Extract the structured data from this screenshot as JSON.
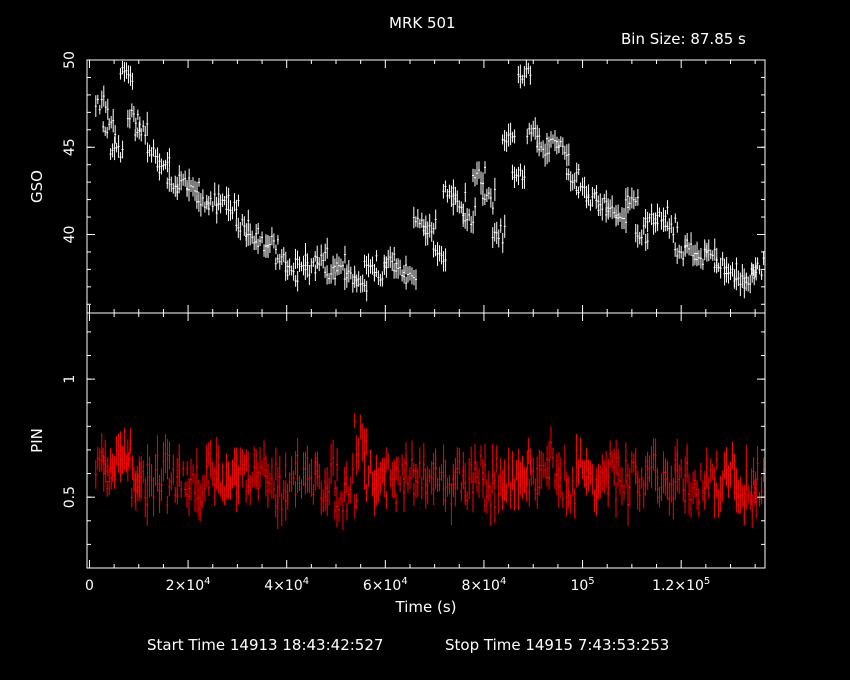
{
  "title": "MRK 501",
  "bin_size": "Bin Size: 87.85 s",
  "footer": {
    "start": "Start Time 14913 18:43:42:527",
    "stop": "Stop Time 14915  7:43:53:253"
  },
  "chart_data": [
    {
      "type": "line",
      "panel": "top",
      "ylabel": "GSO",
      "ylim": [
        35.5,
        50
      ],
      "yticks": [
        40,
        45,
        50
      ],
      "xlim": [
        -500,
        137000
      ],
      "color": "#ffffff",
      "style": "error-bars",
      "x": [
        2500,
        4000,
        5500,
        7500,
        9000,
        10500,
        13000,
        15000,
        17000,
        19000,
        21000,
        23000,
        25000,
        27000,
        29000,
        31000,
        33000,
        35000,
        37000,
        39000,
        41000,
        43000,
        45000,
        47000,
        49000,
        51000,
        53000,
        55000,
        57000,
        59000,
        61000,
        63000,
        65000,
        67000,
        69000,
        71000,
        73000,
        75000,
        77000,
        79000,
        81000,
        83000,
        85000,
        87000,
        88200,
        90000,
        92000,
        94000,
        96000,
        98000,
        100000,
        102000,
        104000,
        106000,
        108000,
        110000,
        112000,
        114000,
        116000,
        118000,
        120000,
        122000,
        124000,
        126000,
        128000,
        130000,
        132000,
        134000,
        135500
      ],
      "y": [
        47.5,
        46.0,
        44.6,
        49.3,
        46.8,
        45.8,
        44.7,
        43.8,
        43.0,
        42.8,
        42.5,
        42.0,
        41.8,
        41.7,
        41.4,
        40.5,
        40.0,
        39.5,
        39.5,
        38.5,
        37.9,
        38.5,
        38.0,
        38.6,
        37.7,
        38.3,
        37.6,
        37.4,
        38.4,
        37.6,
        38.3,
        37.8,
        38.0,
        41.0,
        40.2,
        39.0,
        42.5,
        41.8,
        41.0,
        43.3,
        42.0,
        40.0,
        45.3,
        43.5,
        49.0,
        45.8,
        45.0,
        45.5,
        45.0,
        43.3,
        42.5,
        42.0,
        41.8,
        41.3,
        41.0,
        42.0,
        40.0,
        40.8,
        41.0,
        40.5,
        39.0,
        39.3,
        38.7,
        39.0,
        38.2,
        37.9,
        37.5,
        37.4,
        38.0
      ]
    },
    {
      "type": "line",
      "panel": "bottom",
      "ylabel": "PIN",
      "xlabel": "Time (s)",
      "ylim": [
        0.2,
        1.28
      ],
      "yticks": [
        0.5,
        1
      ],
      "ytick_labels": [
        "0.5",
        "1"
      ],
      "xlim": [
        -500,
        137000
      ],
      "xticks": [
        0,
        20000,
        40000,
        60000,
        80000,
        100000,
        120000
      ],
      "color": "#ff0000",
      "style": "error-bars",
      "x": [
        2500,
        4000,
        5500,
        7500,
        9000,
        10500,
        13000,
        15000,
        17000,
        19000,
        21000,
        23000,
        25000,
        27000,
        29000,
        31000,
        33000,
        35000,
        37000,
        39000,
        41000,
        43000,
        45000,
        47000,
        49000,
        51000,
        53000,
        55000,
        57000,
        59000,
        61000,
        63000,
        65000,
        67000,
        69000,
        71000,
        73000,
        75000,
        77000,
        79000,
        81000,
        83000,
        85000,
        87000,
        88200,
        90000,
        92000,
        94000,
        96000,
        98000,
        100000,
        102000,
        104000,
        106000,
        108000,
        110000,
        112000,
        114000,
        116000,
        118000,
        120000,
        122000,
        124000,
        126000,
        128000,
        130000,
        132000,
        134000,
        135500
      ],
      "y": [
        0.65,
        0.6,
        0.62,
        0.66,
        0.58,
        0.55,
        0.57,
        0.6,
        0.55,
        0.58,
        0.52,
        0.56,
        0.63,
        0.55,
        0.57,
        0.59,
        0.55,
        0.6,
        0.57,
        0.53,
        0.6,
        0.55,
        0.59,
        0.56,
        0.58,
        0.52,
        0.54,
        0.76,
        0.58,
        0.55,
        0.62,
        0.56,
        0.58,
        0.6,
        0.54,
        0.57,
        0.55,
        0.59,
        0.56,
        0.6,
        0.54,
        0.58,
        0.55,
        0.59,
        0.62,
        0.56,
        0.58,
        0.65,
        0.57,
        0.55,
        0.62,
        0.57,
        0.58,
        0.6,
        0.54,
        0.59,
        0.55,
        0.62,
        0.57,
        0.53,
        0.6,
        0.56,
        0.55,
        0.59,
        0.56,
        0.6,
        0.55,
        0.51,
        0.57
      ]
    }
  ]
}
